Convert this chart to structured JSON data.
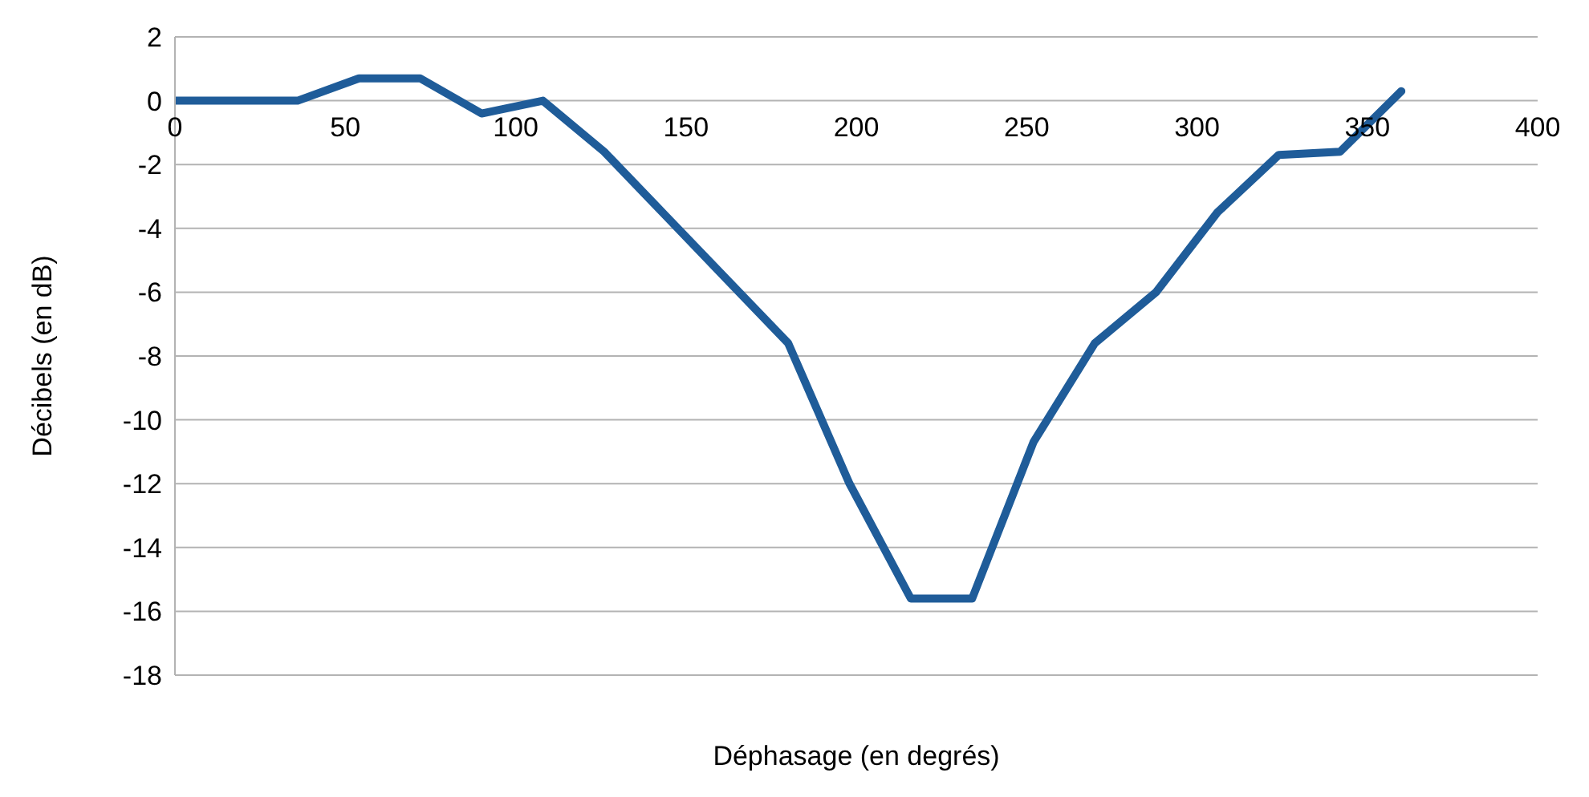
{
  "chart_data": {
    "type": "line",
    "xlabel": "Déphasage (en degrés)",
    "ylabel": "Décibels (en dB)",
    "x": [
      0,
      18,
      36,
      54,
      72,
      90,
      108,
      126,
      144,
      162,
      180,
      198,
      216,
      234,
      252,
      270,
      288,
      306,
      324,
      342,
      360
    ],
    "series": [
      {
        "color": "#1f5c99",
        "values": [
          0,
          0,
          0,
          0.7,
          0.7,
          -0.4,
          0,
          -1.6,
          -3.6,
          -5.6,
          -7.6,
          -12,
          -15.6,
          -15.6,
          -10.7,
          -7.6,
          -6,
          -3.5,
          -1.7,
          -1.6,
          0.3
        ]
      }
    ],
    "xlim": [
      0,
      400
    ],
    "xticks": [
      0,
      50,
      100,
      150,
      200,
      250,
      300,
      350,
      400
    ],
    "ylim": [
      -18,
      2
    ],
    "yticks": [
      -18,
      -16,
      -14,
      -12,
      -10,
      -8,
      -6,
      -4,
      -2,
      0,
      2
    ],
    "grid": "y",
    "legend": false,
    "marker": "none",
    "line_style": "solid"
  }
}
